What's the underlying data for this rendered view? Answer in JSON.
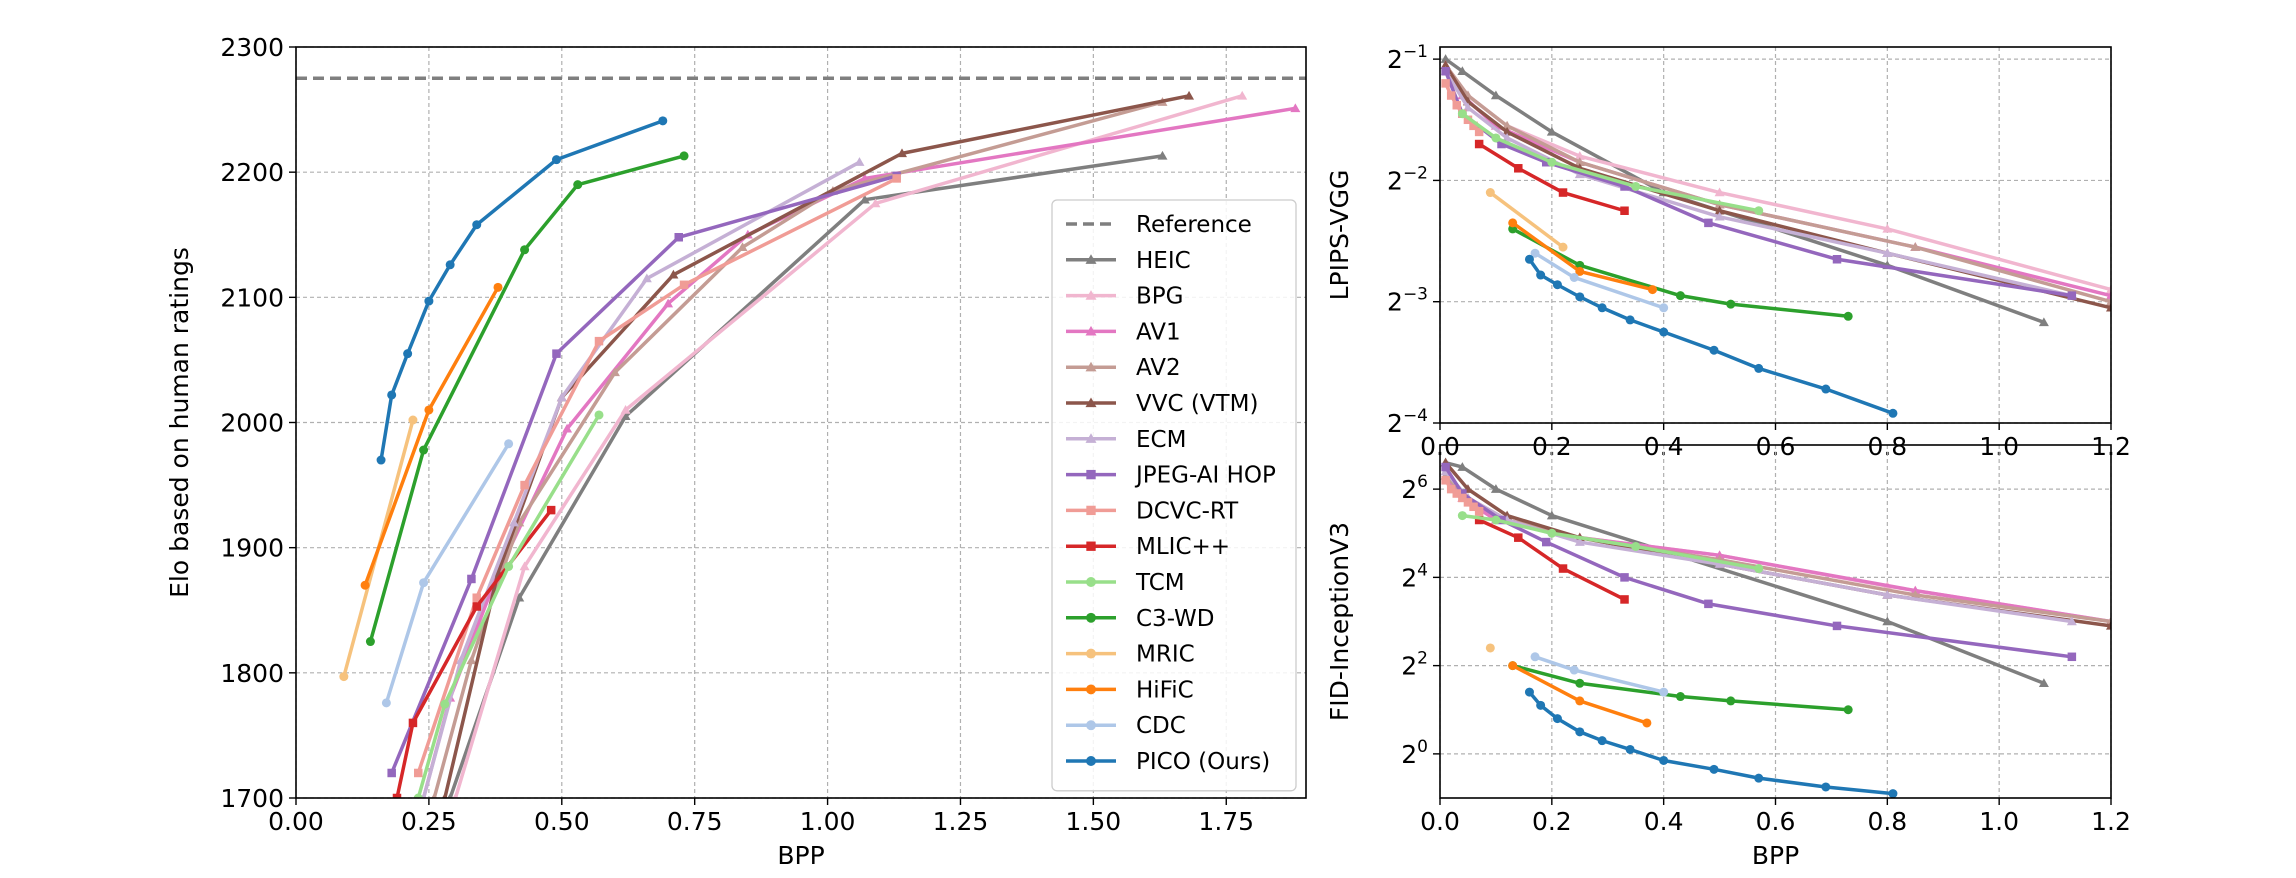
{
  "colors": {
    "HEIC": "#7f7f7f",
    "BPG": "#f1b6cf",
    "AV1": "#e377c2",
    "AV2": "#c49c94",
    "VVC (VTM)": "#8c564b",
    "ECM": "#c5b0d5",
    "JPEG-AI HOP": "#9467bd",
    "DCVC-RT": "#f09c96",
    "MLIC++": "#d62728",
    "TCM": "#98df8a",
    "C3-WD": "#2ca02c",
    "MRIC": "#f6c27d",
    "HiFiC": "#ff7f0e",
    "CDC": "#aec7e8",
    "PICO (Ours)": "#1f77b4",
    "Reference": "#7f7f7f"
  },
  "chart_data": [
    {
      "type": "line",
      "xlabel": "BPP",
      "ylabel": "Elo based on human ratings",
      "xlim": [
        0.0,
        1.9
      ],
      "ylim": [
        1700,
        2300
      ],
      "xticks": [
        "0.00",
        "0.25",
        "0.50",
        "0.75",
        "1.00",
        "1.25",
        "1.50",
        "1.75"
      ],
      "yticks": [
        "1700",
        "1800",
        "1900",
        "2000",
        "2100",
        "2200",
        "2300"
      ],
      "grid": true,
      "legend_position": "lower-right",
      "reference": {
        "name": "Reference",
        "y": 2275
      },
      "series": [
        {
          "name": "HEIC",
          "marker": "triangle",
          "x": [
            0.29,
            0.42,
            0.62,
            1.07,
            1.63
          ],
          "y": [
            1700,
            1860,
            2005,
            2178,
            2213
          ]
        },
        {
          "name": "BPG",
          "marker": "triangle",
          "x": [
            0.3,
            0.43,
            0.62,
            1.09,
            1.78
          ],
          "y": [
            1700,
            1885,
            2010,
            2175,
            2261
          ]
        },
        {
          "name": "AV1",
          "marker": "triangle",
          "x": [
            0.24,
            0.29,
            0.38,
            0.51,
            0.7,
            0.85,
            1.07,
            1.88
          ],
          "y": [
            1700,
            1780,
            1880,
            1995,
            2095,
            2150,
            2195,
            2251
          ]
        },
        {
          "name": "AV2",
          "marker": "triangle",
          "x": [
            0.26,
            0.33,
            0.42,
            0.6,
            0.84,
            1.01,
            1.63
          ],
          "y": [
            1700,
            1810,
            1920,
            2040,
            2140,
            2185,
            2256
          ]
        },
        {
          "name": "VVC (VTM)",
          "marker": "triangle",
          "x": [
            0.28,
            0.38,
            0.5,
            0.71,
            1.14,
            1.68
          ],
          "y": [
            1700,
            1880,
            2020,
            2118,
            2215,
            2261
          ]
        },
        {
          "name": "ECM",
          "marker": "triangle",
          "x": [
            0.24,
            0.31,
            0.41,
            0.5,
            0.66,
            1.06
          ],
          "y": [
            1700,
            1810,
            1920,
            2020,
            2115,
            2208
          ]
        },
        {
          "name": "JPEG-AI HOP",
          "marker": "square",
          "x": [
            0.18,
            0.33,
            0.49,
            0.72,
            1.13
          ],
          "y": [
            1720,
            1875,
            2055,
            2148,
            2197
          ]
        },
        {
          "name": "DCVC-RT",
          "marker": "square",
          "x": [
            0.23,
            0.34,
            0.43,
            0.57,
            0.73,
            1.13
          ],
          "y": [
            1720,
            1860,
            1950,
            2065,
            2110,
            2195
          ]
        },
        {
          "name": "MLIC++",
          "marker": "square",
          "x": [
            0.19,
            0.22,
            0.34,
            0.48
          ],
          "y": [
            1700,
            1760,
            1853,
            1930
          ]
        },
        {
          "name": "TCM",
          "marker": "circle",
          "x": [
            0.23,
            0.28,
            0.4,
            0.57
          ],
          "y": [
            1700,
            1775,
            1885,
            2006
          ]
        },
        {
          "name": "C3-WD",
          "marker": "circle",
          "x": [
            0.14,
            0.24,
            0.43,
            0.53,
            0.73
          ],
          "y": [
            1825,
            1978,
            2138,
            2190,
            2213
          ]
        },
        {
          "name": "MRIC",
          "marker": "circle",
          "x": [
            0.09,
            0.22
          ],
          "y": [
            1797,
            2002
          ]
        },
        {
          "name": "HiFiC",
          "marker": "circle",
          "x": [
            0.13,
            0.25,
            0.38
          ],
          "y": [
            1870,
            2010,
            2108
          ]
        },
        {
          "name": "CDC",
          "marker": "circle",
          "x": [
            0.17,
            0.24,
            0.4
          ],
          "y": [
            1776,
            1872,
            1983
          ]
        },
        {
          "name": "PICO (Ours)",
          "marker": "circle",
          "x": [
            0.16,
            0.18,
            0.21,
            0.25,
            0.29,
            0.34,
            0.49,
            0.69
          ],
          "y": [
            1970,
            2022,
            2055,
            2097,
            2126,
            2158,
            2210,
            2241
          ]
        }
      ]
    },
    {
      "type": "line",
      "xlabel": "",
      "ylabel": "LPIPS-VGG",
      "yscale": "log2",
      "xlim": [
        0.0,
        1.2
      ],
      "ylim_log2": [
        -4,
        -0.9
      ],
      "xticks": [
        "0.0",
        "0.2",
        "0.4",
        "0.6",
        "0.8",
        "1.0",
        "1.2"
      ],
      "yticks_base": "2",
      "yticks_exp": [
        "−1",
        "−2",
        "−3",
        "−4"
      ],
      "grid": true,
      "series": [
        {
          "name": "HEIC",
          "marker": "triangle",
          "x": [
            0.01,
            0.04,
            0.1,
            0.2,
            0.4,
            0.8,
            1.08
          ],
          "y": [
            -1.0,
            -1.1,
            -1.3,
            -1.6,
            -2.1,
            -2.7,
            -3.17
          ]
        },
        {
          "name": "BPG",
          "marker": "triangle",
          "x": [
            0.01,
            0.05,
            0.12,
            0.25,
            0.5,
            0.8,
            1.2
          ],
          "y": [
            -1.05,
            -1.3,
            -1.55,
            -1.8,
            -2.1,
            -2.4,
            -2.9
          ]
        },
        {
          "name": "AV1",
          "marker": "triangle",
          "x": [
            0.01,
            0.04,
            0.1,
            0.25,
            0.5,
            0.85,
            1.2
          ],
          "y": [
            -1.05,
            -1.3,
            -1.55,
            -1.85,
            -2.2,
            -2.55,
            -2.95
          ]
        },
        {
          "name": "AV2",
          "marker": "triangle",
          "x": [
            0.01,
            0.05,
            0.12,
            0.25,
            0.5,
            0.85,
            1.2
          ],
          "y": [
            -1.05,
            -1.3,
            -1.55,
            -1.85,
            -2.2,
            -2.55,
            -3.0
          ]
        },
        {
          "name": "VVC (VTM)",
          "marker": "triangle",
          "x": [
            0.01,
            0.05,
            0.12,
            0.25,
            0.5,
            0.8,
            1.2
          ],
          "y": [
            -1.05,
            -1.35,
            -1.6,
            -1.9,
            -2.25,
            -2.6,
            -3.05
          ]
        },
        {
          "name": "ECM",
          "marker": "triangle",
          "x": [
            0.01,
            0.05,
            0.12,
            0.25,
            0.5,
            0.8,
            1.13
          ],
          "y": [
            -1.1,
            -1.4,
            -1.65,
            -1.95,
            -2.3,
            -2.6,
            -2.95
          ]
        },
        {
          "name": "JPEG-AI HOP",
          "marker": "square",
          "x": [
            0.01,
            0.04,
            0.11,
            0.19,
            0.33,
            0.48,
            0.71,
            1.13
          ],
          "y": [
            -1.1,
            -1.45,
            -1.7,
            -1.85,
            -2.05,
            -2.35,
            -2.65,
            -2.95
          ]
        },
        {
          "name": "DCVC-RT",
          "marker": "square",
          "x": [
            0.01,
            0.02,
            0.03,
            0.04,
            0.05,
            0.06,
            0.07
          ],
          "y": [
            -1.2,
            -1.3,
            -1.38,
            -1.45,
            -1.5,
            -1.55,
            -1.6
          ]
        },
        {
          "name": "MLIC++",
          "marker": "square",
          "x": [
            0.07,
            0.14,
            0.22,
            0.33
          ],
          "y": [
            -1.7,
            -1.9,
            -2.1,
            -2.25
          ]
        },
        {
          "name": "TCM",
          "marker": "circle",
          "x": [
            0.04,
            0.1,
            0.2,
            0.35,
            0.57
          ],
          "y": [
            -1.45,
            -1.65,
            -1.85,
            -2.05,
            -2.25
          ]
        },
        {
          "name": "C3-WD",
          "marker": "circle",
          "x": [
            0.13,
            0.25,
            0.43,
            0.52,
            0.73
          ],
          "y": [
            -2.4,
            -2.7,
            -2.95,
            -3.02,
            -3.12
          ]
        },
        {
          "name": "MRIC",
          "marker": "circle",
          "x": [
            0.09,
            0.22
          ],
          "y": [
            -2.1,
            -2.55
          ]
        },
        {
          "name": "HiFiC",
          "marker": "circle",
          "x": [
            0.13,
            0.25,
            0.38
          ],
          "y": [
            -2.35,
            -2.75,
            -2.9
          ]
        },
        {
          "name": "CDC",
          "marker": "circle",
          "x": [
            0.17,
            0.24,
            0.4
          ],
          "y": [
            -2.6,
            -2.8,
            -3.05
          ]
        },
        {
          "name": "PICO (Ours)",
          "marker": "circle",
          "x": [
            0.16,
            0.18,
            0.21,
            0.25,
            0.29,
            0.34,
            0.4,
            0.49,
            0.57,
            0.69,
            0.81
          ],
          "y": [
            -2.65,
            -2.78,
            -2.86,
            -2.96,
            -3.05,
            -3.15,
            -3.25,
            -3.4,
            -3.55,
            -3.72,
            -3.92
          ]
        }
      ]
    },
    {
      "type": "line",
      "xlabel": "BPP",
      "ylabel": "FID-InceptionV3",
      "yscale": "log2",
      "xlim": [
        0.0,
        1.2
      ],
      "ylim_log2": [
        -1.0,
        7.0
      ],
      "xticks": [
        "0.0",
        "0.2",
        "0.4",
        "0.6",
        "0.8",
        "1.0",
        "1.2"
      ],
      "yticks_base": "2",
      "yticks_exp": [
        "0",
        "2",
        "4",
        "6"
      ],
      "grid": true,
      "series": [
        {
          "name": "HEIC",
          "marker": "triangle",
          "x": [
            0.01,
            0.04,
            0.1,
            0.2,
            0.4,
            0.8,
            1.08
          ],
          "y": [
            6.6,
            6.5,
            6.0,
            5.4,
            4.6,
            3.0,
            1.6
          ]
        },
        {
          "name": "BPG",
          "marker": "triangle",
          "x": [
            0.01,
            0.05,
            0.12,
            0.25,
            0.5,
            0.8,
            1.2
          ],
          "y": [
            6.3,
            5.8,
            5.3,
            4.9,
            4.5,
            3.8,
            3.0
          ]
        },
        {
          "name": "AV1",
          "marker": "triangle",
          "x": [
            0.01,
            0.04,
            0.1,
            0.25,
            0.5,
            0.85,
            1.2
          ],
          "y": [
            6.3,
            5.8,
            5.3,
            4.9,
            4.5,
            3.7,
            3.0
          ]
        },
        {
          "name": "AV2",
          "marker": "triangle",
          "x": [
            0.01,
            0.05,
            0.12,
            0.25,
            0.5,
            0.85,
            1.2
          ],
          "y": [
            6.3,
            5.8,
            5.3,
            4.9,
            4.4,
            3.6,
            3.0
          ]
        },
        {
          "name": "VVC (VTM)",
          "marker": "triangle",
          "x": [
            0.01,
            0.05,
            0.12,
            0.25,
            0.5,
            0.8,
            1.2
          ],
          "y": [
            6.6,
            6.0,
            5.4,
            4.9,
            4.3,
            3.6,
            2.9
          ]
        },
        {
          "name": "ECM",
          "marker": "triangle",
          "x": [
            0.01,
            0.05,
            0.12,
            0.25,
            0.5,
            0.8,
            1.13
          ],
          "y": [
            6.4,
            5.8,
            5.3,
            4.8,
            4.3,
            3.6,
            3.0
          ]
        },
        {
          "name": "JPEG-AI HOP",
          "marker": "square",
          "x": [
            0.01,
            0.04,
            0.11,
            0.19,
            0.33,
            0.48,
            0.71,
            1.13
          ],
          "y": [
            6.5,
            5.9,
            5.3,
            4.8,
            4.0,
            3.4,
            2.9,
            2.2
          ]
        },
        {
          "name": "DCVC-RT",
          "marker": "square",
          "x": [
            0.01,
            0.02,
            0.03,
            0.04,
            0.05,
            0.06,
            0.07
          ],
          "y": [
            6.2,
            6.0,
            5.9,
            5.8,
            5.7,
            5.6,
            5.5
          ]
        },
        {
          "name": "MLIC++",
          "marker": "square",
          "x": [
            0.07,
            0.14,
            0.22,
            0.33
          ],
          "y": [
            5.3,
            4.9,
            4.2,
            3.5
          ]
        },
        {
          "name": "TCM",
          "marker": "circle",
          "x": [
            0.04,
            0.1,
            0.2,
            0.35,
            0.57
          ],
          "y": [
            5.4,
            5.3,
            5.0,
            4.7,
            4.2
          ]
        },
        {
          "name": "C3-WD",
          "marker": "circle",
          "x": [
            0.13,
            0.25,
            0.43,
            0.52,
            0.73
          ],
          "y": [
            2.0,
            1.6,
            1.3,
            1.2,
            1.0
          ]
        },
        {
          "name": "MRIC",
          "marker": "circle",
          "x": [
            0.09
          ],
          "y": [
            2.4
          ]
        },
        {
          "name": "HiFiC",
          "marker": "circle",
          "x": [
            0.13,
            0.25,
            0.37
          ],
          "y": [
            2.0,
            1.2,
            0.7
          ]
        },
        {
          "name": "CDC",
          "marker": "circle",
          "x": [
            0.17,
            0.24,
            0.4
          ],
          "y": [
            2.2,
            1.9,
            1.4
          ]
        },
        {
          "name": "PICO (Ours)",
          "marker": "circle",
          "x": [
            0.16,
            0.18,
            0.21,
            0.25,
            0.29,
            0.34,
            0.4,
            0.49,
            0.57,
            0.69,
            0.81
          ],
          "y": [
            1.4,
            1.1,
            0.8,
            0.5,
            0.3,
            0.1,
            -0.15,
            -0.35,
            -0.55,
            -0.75,
            -0.9
          ]
        }
      ]
    }
  ],
  "legend": [
    "Reference",
    "HEIC",
    "BPG",
    "AV1",
    "AV2",
    "VVC (VTM)",
    "ECM",
    "JPEG-AI HOP",
    "DCVC-RT",
    "MLIC++",
    "TCM",
    "C3-WD",
    "MRIC",
    "HiFiC",
    "CDC",
    "PICO (Ours)"
  ]
}
